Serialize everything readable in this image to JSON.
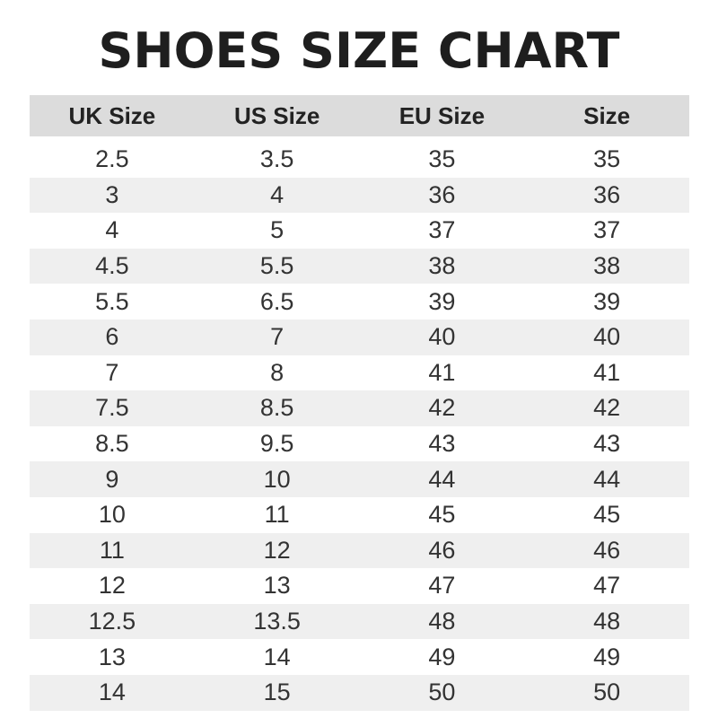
{
  "title": "SHOES SIZE CHART",
  "chart_data": {
    "type": "table",
    "title": "SHOES SIZE CHART",
    "columns": [
      "UK Size",
      "US Size",
      "EU Size",
      "Size"
    ],
    "rows": [
      [
        "2.5",
        "3.5",
        "35",
        "35"
      ],
      [
        "3",
        "4",
        "36",
        "36"
      ],
      [
        "4",
        "5",
        "37",
        "37"
      ],
      [
        "4.5",
        "5.5",
        "38",
        "38"
      ],
      [
        "5.5",
        "6.5",
        "39",
        "39"
      ],
      [
        "6",
        "7",
        "40",
        "40"
      ],
      [
        "7",
        "8",
        "41",
        "41"
      ],
      [
        "7.5",
        "8.5",
        "42",
        "42"
      ],
      [
        "8.5",
        "9.5",
        "43",
        "43"
      ],
      [
        "9",
        "10",
        "44",
        "44"
      ],
      [
        "10",
        "11",
        "45",
        "45"
      ],
      [
        "11",
        "12",
        "46",
        "46"
      ],
      [
        "12",
        "13",
        "47",
        "47"
      ],
      [
        "12.5",
        "13.5",
        "48",
        "48"
      ],
      [
        "13",
        "14",
        "49",
        "49"
      ],
      [
        "14",
        "15",
        "50",
        "50"
      ]
    ],
    "colors": {
      "header_bg": "#dcdcdc",
      "stripe_bg": "#efefef"
    }
  }
}
